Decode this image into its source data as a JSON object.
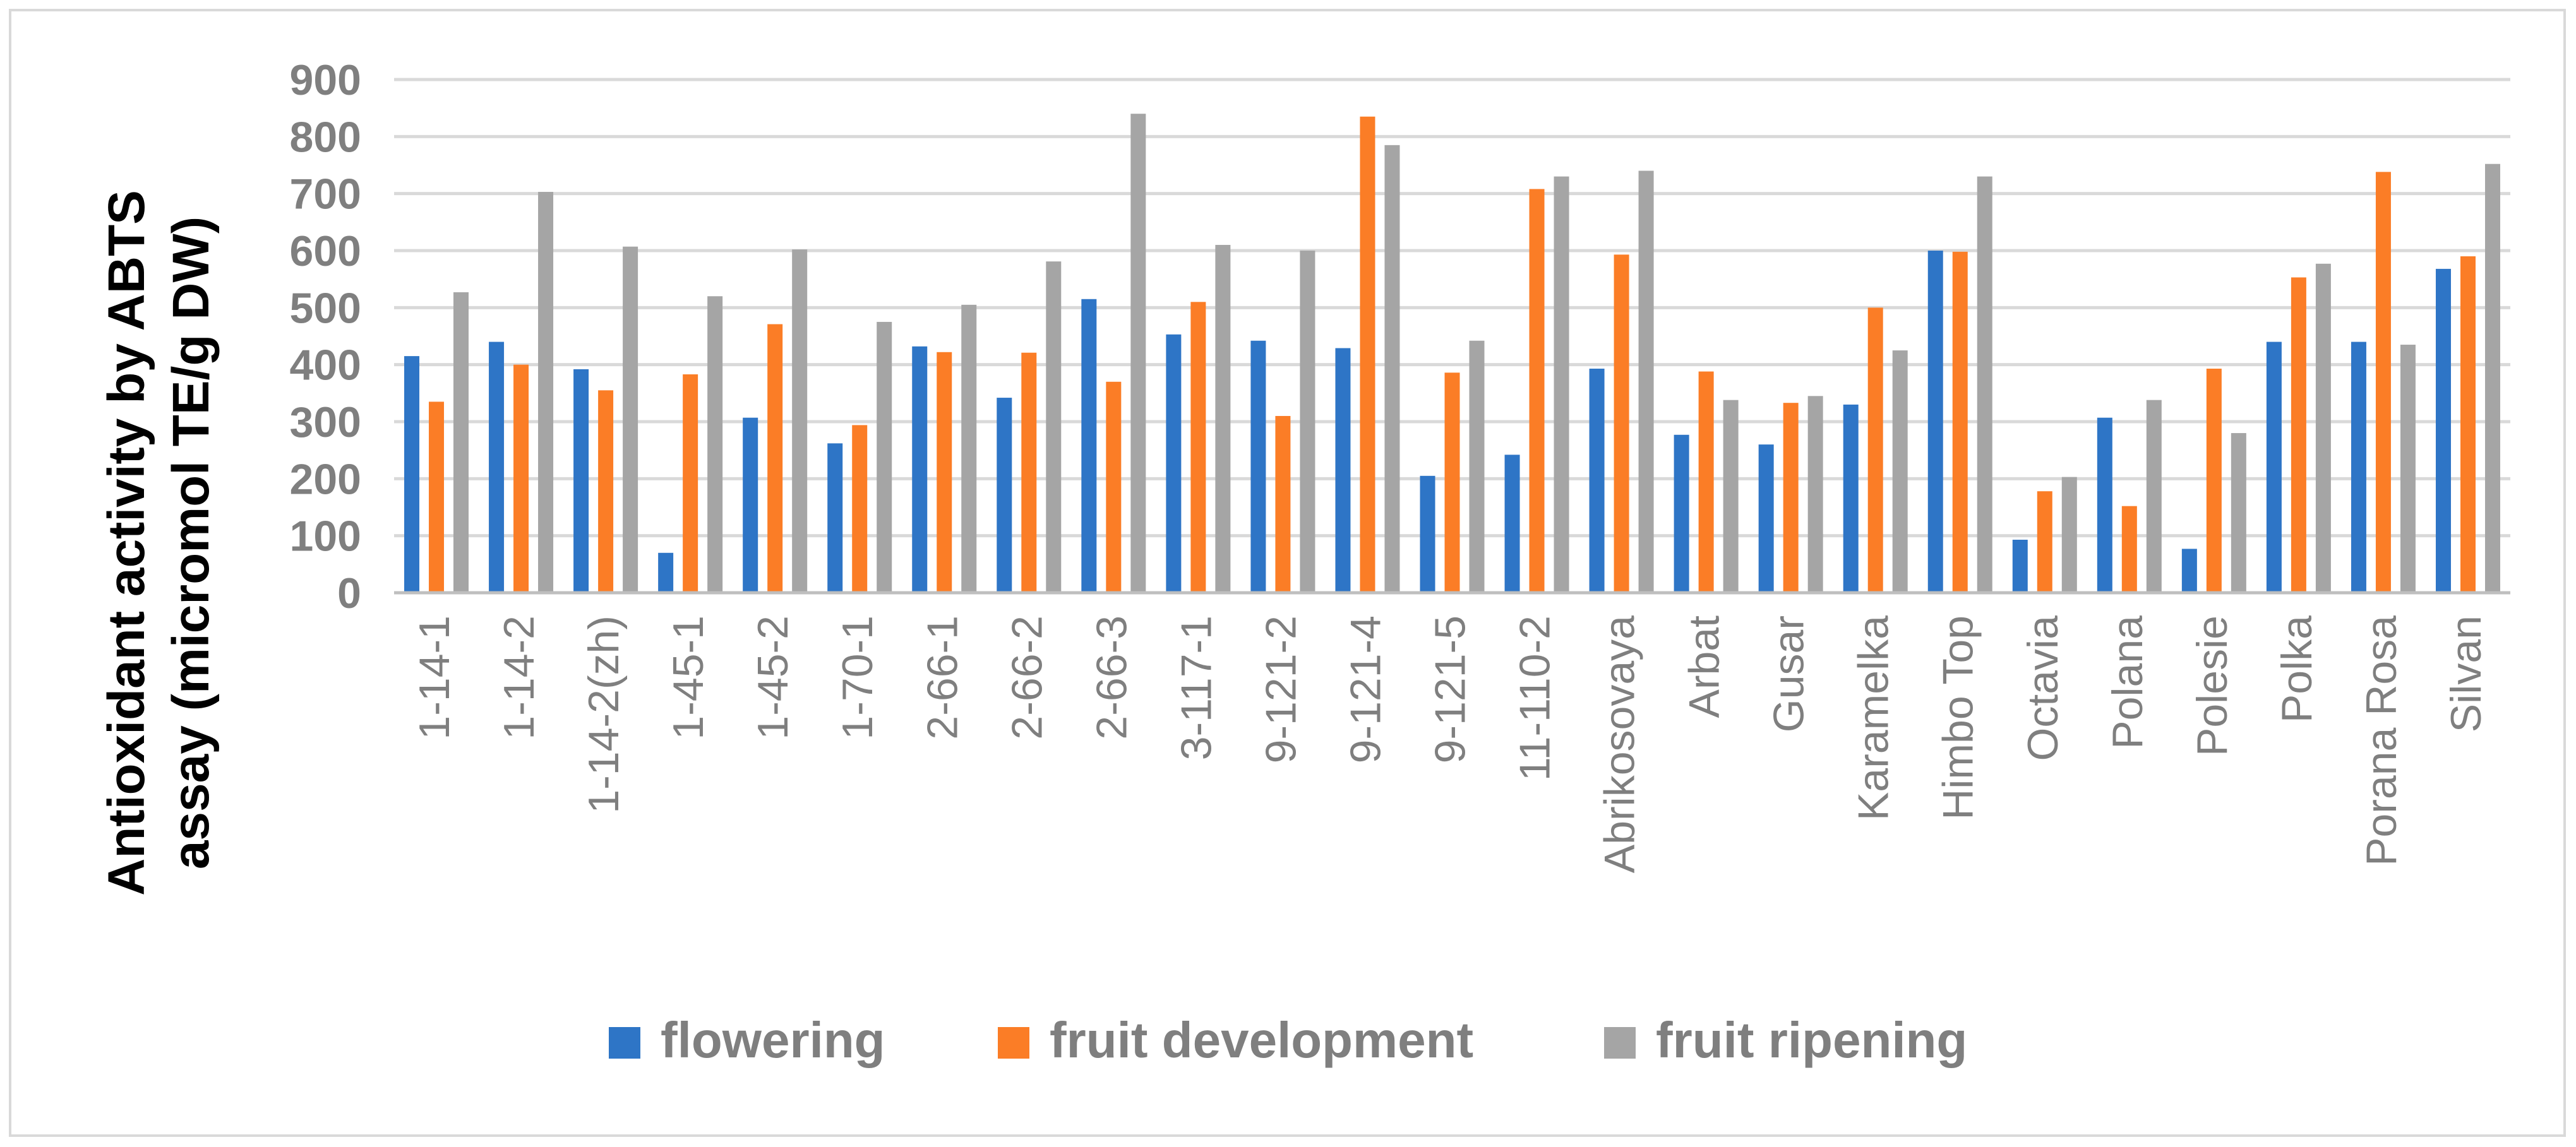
{
  "chart_data": {
    "type": "bar",
    "title": "",
    "xlabel": "",
    "ylabel_line1": "Antioxidant activity by ABTS",
    "ylabel_line2": "assay (micromol TE/g DW)",
    "ylim": [
      0,
      900
    ],
    "yticks": [
      0,
      100,
      200,
      300,
      400,
      500,
      600,
      700,
      800,
      900
    ],
    "grid": true,
    "legend_position": "bottom",
    "categories": [
      "1-14-1",
      "1-14-2",
      "1-14-2(zh)",
      "1-45-1",
      "1-45-2",
      "1-70-1",
      "2-66-1",
      "2-66-2",
      "2-66-3",
      "3-117-1",
      "9-121-2",
      "9-121-4",
      "9-121-5",
      "11-110-2",
      "Abrikosovaya",
      "Arbat",
      "Gusar",
      "Karamelka",
      "Himbo Top",
      "Octavia",
      "Polana",
      "Polesie",
      "Polka",
      "Porana Rosa",
      "Silvan"
    ],
    "series": [
      {
        "name": "flowering",
        "color": "#2e75c6",
        "values": [
          415,
          440,
          392,
          70,
          307,
          262,
          432,
          342,
          515,
          453,
          442,
          429,
          205,
          242,
          393,
          277,
          260,
          330,
          600,
          93,
          307,
          77,
          440,
          440,
          568
        ]
      },
      {
        "name": "fruit development",
        "color": "#fb7d26",
        "values": [
          335,
          400,
          355,
          383,
          471,
          294,
          422,
          421,
          370,
          510,
          310,
          835,
          386,
          708,
          593,
          388,
          333,
          500,
          598,
          178,
          152,
          393,
          553,
          738,
          590
        ]
      },
      {
        "name": "fruit ripening",
        "color": "#a5a5a5",
        "values": [
          527,
          703,
          607,
          520,
          602,
          475,
          505,
          581,
          840,
          610,
          600,
          785,
          442,
          730,
          740,
          338,
          345,
          425,
          730,
          203,
          338,
          280,
          577,
          435,
          752
        ]
      }
    ]
  }
}
